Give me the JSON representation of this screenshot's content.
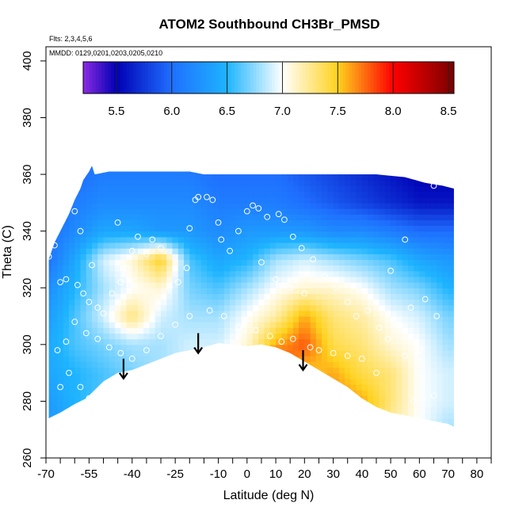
{
  "chart_data": {
    "type": "heatmap",
    "title": "ATOM2 Southbound CH3Br_PMSD",
    "note_flights": "Flts: 2,3,4,5,6",
    "note_dates": "MMDD: 0129,0201,0203,0205,0210",
    "xlabel": "Latitude (deg N)",
    "ylabel": "Theta (C)",
    "xlim": [
      -70,
      85
    ],
    "ylim": [
      260,
      405
    ],
    "x_ticks": [
      -70,
      -55,
      -40,
      -25,
      -10,
      0,
      10,
      20,
      30,
      40,
      50,
      60,
      70,
      80
    ],
    "x_minor_ticks": [
      -65,
      -60,
      -50,
      -45,
      -35,
      -30,
      -20,
      -15,
      -5,
      5,
      15,
      25,
      35,
      45,
      55,
      65,
      75,
      85
    ],
    "y_ticks": [
      260,
      280,
      300,
      320,
      340,
      360,
      380,
      400
    ],
    "colorbar": {
      "range": [
        5.2,
        8.55
      ],
      "ticks": [
        5.5,
        6.0,
        6.5,
        7.0,
        7.5,
        8.0,
        8.5
      ],
      "stops": [
        {
          "v": 5.2,
          "color": "#8b2be2"
        },
        {
          "v": 5.5,
          "color": "#0000b4"
        },
        {
          "v": 6.0,
          "color": "#1f6fff"
        },
        {
          "v": 6.5,
          "color": "#1eb4ff"
        },
        {
          "v": 7.0,
          "color": "#ffffff"
        },
        {
          "v": 7.5,
          "color": "#ffd21e"
        },
        {
          "v": 8.0,
          "color": "#ff0000"
        },
        {
          "v": 8.55,
          "color": "#7a0000"
        }
      ]
    },
    "field": {
      "lat_start": -70,
      "lat_step": 10,
      "theta_start": 270,
      "theta_step": 10,
      "values": [
        [
          6.3,
          6.4,
          6.5,
          6.5,
          6.7,
          6.8,
          6.8,
          7.0,
          7.5,
          7.5,
          7.6,
          7.6,
          7.2,
          7.0,
          6.8
        ],
        [
          6.3,
          6.5,
          6.6,
          6.7,
          6.8,
          6.9,
          7.0,
          7.3,
          7.6,
          7.5,
          7.7,
          7.6,
          7.3,
          7.0,
          6.9
        ],
        [
          6.4,
          6.5,
          6.6,
          6.7,
          6.8,
          6.9,
          7.0,
          7.5,
          8.1,
          7.5,
          7.6,
          7.4,
          7.3,
          7.0,
          6.9
        ],
        [
          6.4,
          6.6,
          6.7,
          6.8,
          6.8,
          6.9,
          6.9,
          7.1,
          7.6,
          7.8,
          7.4,
          7.3,
          7.1,
          7.0,
          6.8
        ],
        [
          6.3,
          6.6,
          6.9,
          7.3,
          6.9,
          6.8,
          6.8,
          7.0,
          7.2,
          7.6,
          7.3,
          7.2,
          7.0,
          6.9,
          6.7
        ],
        [
          6.2,
          6.5,
          6.8,
          7.0,
          7.1,
          6.7,
          6.6,
          6.8,
          7.0,
          7.1,
          7.1,
          7.0,
          6.8,
          6.7,
          6.5
        ],
        [
          6.0,
          6.4,
          6.9,
          7.1,
          7.5,
          6.6,
          6.4,
          6.5,
          6.8,
          6.9,
          6.8,
          6.7,
          6.6,
          6.4,
          6.3
        ],
        [
          6.0,
          6.2,
          6.4,
          6.4,
          6.3,
          6.3,
          6.2,
          6.3,
          6.3,
          6.3,
          6.2,
          6.2,
          6.1,
          6.0,
          6.0
        ],
        [
          5.9,
          6.1,
          6.2,
          6.2,
          6.2,
          6.2,
          6.1,
          6.1,
          6.1,
          6.0,
          5.9,
          5.8,
          5.7,
          5.6,
          5.6
        ],
        [
          5.9,
          6.0,
          6.1,
          6.1,
          6.1,
          6.1,
          6.0,
          6.0,
          6.0,
          5.9,
          5.8,
          5.7,
          5.6,
          5.5,
          5.5
        ]
      ]
    },
    "coverage_top": [
      [
        -69,
        330
      ],
      [
        -67,
        336
      ],
      [
        -64,
        342
      ],
      [
        -62,
        346
      ],
      [
        -60,
        351
      ],
      [
        -58,
        355
      ],
      [
        -57,
        358
      ],
      [
        -55,
        361
      ],
      [
        -54,
        363
      ],
      [
        -53,
        360
      ],
      [
        -48,
        361
      ],
      [
        -40,
        361
      ],
      [
        -30,
        361
      ],
      [
        -20,
        361
      ],
      [
        -15,
        360
      ],
      [
        -5,
        360
      ],
      [
        5,
        360
      ],
      [
        15,
        360
      ],
      [
        25,
        360
      ],
      [
        35,
        360
      ],
      [
        45,
        360
      ],
      [
        55,
        359
      ],
      [
        62,
        357
      ],
      [
        68,
        356
      ],
      [
        72,
        355
      ]
    ],
    "coverage_bottom": [
      [
        72,
        271
      ],
      [
        70,
        272
      ],
      [
        65,
        273
      ],
      [
        60,
        274
      ],
      [
        55,
        275
      ],
      [
        50,
        276
      ],
      [
        45,
        278
      ],
      [
        40,
        281
      ],
      [
        35,
        285
      ],
      [
        30,
        288
      ],
      [
        25,
        291
      ],
      [
        20,
        294
      ],
      [
        15,
        297
      ],
      [
        10,
        299
      ],
      [
        5,
        300
      ],
      [
        0,
        299.5
      ],
      [
        -5,
        300
      ],
      [
        -10,
        300.5
      ],
      [
        -15,
        299
      ],
      [
        -20,
        298
      ],
      [
        -25,
        297
      ],
      [
        -30,
        295
      ],
      [
        -35,
        293
      ],
      [
        -40,
        291
      ],
      [
        -45,
        290
      ],
      [
        -50,
        287
      ],
      [
        -53,
        284
      ],
      [
        -56,
        281
      ],
      [
        -60,
        279
      ],
      [
        -65,
        276
      ],
      [
        -69,
        274
      ]
    ],
    "arrows": [
      {
        "x": -43,
        "y_from": 295,
        "y_to": 288
      },
      {
        "x": -17,
        "y_from": 304,
        "y_to": 297
      },
      {
        "x": 19.5,
        "y_from": 298,
        "y_to": 291
      }
    ],
    "sample_points": [
      [
        -69,
        331
      ],
      [
        -68,
        337
      ],
      [
        -67,
        335
      ],
      [
        -65,
        322
      ],
      [
        -63,
        323
      ],
      [
        -59,
        321
      ],
      [
        -57,
        318
      ],
      [
        -55,
        315
      ],
      [
        -52,
        313
      ],
      [
        -50,
        311
      ],
      [
        -47,
        318
      ],
      [
        -44,
        322
      ],
      [
        -42,
        327
      ],
      [
        -38,
        338
      ],
      [
        -33,
        337
      ],
      [
        -30,
        334
      ],
      [
        -27,
        320
      ],
      [
        -24,
        322
      ],
      [
        -21,
        327
      ],
      [
        -20,
        341
      ],
      [
        -18,
        351
      ],
      [
        -17,
        352
      ],
      [
        -14,
        352
      ],
      [
        -12,
        351
      ],
      [
        -9,
        337
      ],
      [
        -6,
        333
      ],
      [
        -3,
        340
      ],
      [
        0,
        347
      ],
      [
        2,
        349
      ],
      [
        4,
        348
      ],
      [
        7,
        345
      ],
      [
        11,
        346
      ],
      [
        13,
        344
      ],
      [
        16,
        338
      ],
      [
        19,
        334
      ],
      [
        23,
        330
      ],
      [
        27,
        324
      ],
      [
        31,
        320
      ],
      [
        35,
        315
      ],
      [
        38,
        310
      ],
      [
        42,
        312
      ],
      [
        46,
        306
      ],
      [
        49,
        302
      ],
      [
        53,
        307
      ],
      [
        57,
        313
      ],
      [
        62,
        316
      ],
      [
        66,
        310
      ],
      [
        -66,
        298
      ],
      [
        -63,
        301
      ],
      [
        -60,
        308
      ],
      [
        -56,
        304
      ],
      [
        -52,
        302
      ],
      [
        -48,
        299
      ],
      [
        -44,
        297
      ],
      [
        -40,
        295
      ],
      [
        -35,
        298
      ],
      [
        -30,
        303
      ],
      [
        -25,
        307
      ],
      [
        -20,
        310
      ],
      [
        -13,
        312
      ],
      [
        -8,
        310
      ],
      [
        -3,
        306
      ],
      [
        3,
        305
      ],
      [
        8,
        303
      ],
      [
        12,
        301
      ],
      [
        16,
        302
      ],
      [
        22,
        299
      ],
      [
        -62,
        290
      ],
      [
        -58,
        285
      ],
      [
        -55,
        281
      ],
      [
        -65,
        285
      ],
      [
        58,
        280
      ],
      [
        65,
        282
      ],
      [
        45,
        290
      ],
      [
        40,
        295
      ],
      [
        35,
        296
      ],
      [
        30,
        297
      ],
      [
        25,
        298
      ],
      [
        55,
        296
      ],
      [
        60,
        298
      ],
      [
        -45,
        343
      ],
      [
        -40,
        333
      ],
      [
        -35,
        332
      ],
      [
        -10,
        343
      ],
      [
        5,
        329
      ],
      [
        10,
        323
      ],
      [
        15,
        320
      ],
      [
        20,
        318
      ],
      [
        -60,
        347
      ],
      [
        -58,
        340
      ],
      [
        -54,
        328
      ],
      [
        50,
        326
      ],
      [
        55,
        337
      ],
      [
        65,
        356
      ]
    ]
  }
}
